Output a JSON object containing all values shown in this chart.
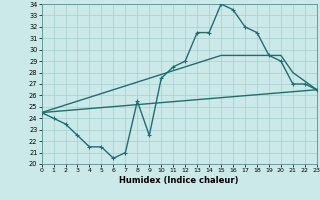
{
  "xlabel": "Humidex (Indice chaleur)",
  "bg_color": "#cce9e9",
  "line_color": "#1a7070",
  "grid_color": "#a8cece",
  "xlim": [
    0,
    23
  ],
  "ylim": [
    20,
    34
  ],
  "xticks": [
    0,
    1,
    2,
    3,
    4,
    5,
    6,
    7,
    8,
    9,
    10,
    11,
    12,
    13,
    14,
    15,
    16,
    17,
    18,
    19,
    20,
    21,
    22,
    23
  ],
  "yticks": [
    20,
    21,
    22,
    23,
    24,
    25,
    26,
    27,
    28,
    29,
    30,
    31,
    32,
    33,
    34
  ],
  "line1_x": [
    0,
    1,
    2,
    3,
    4,
    5,
    6,
    7,
    8,
    9,
    10,
    11,
    12,
    13,
    14,
    15,
    16,
    17,
    18,
    19,
    20,
    21,
    22,
    23
  ],
  "line1_y": [
    24.5,
    24.0,
    23.5,
    22.5,
    21.5,
    21.5,
    20.5,
    21.0,
    25.5,
    22.5,
    27.5,
    28.5,
    29.0,
    31.5,
    31.5,
    34.0,
    33.5,
    32.0,
    31.5,
    29.5,
    29.0,
    27.0,
    27.0,
    26.5
  ],
  "line2_x": [
    0,
    23
  ],
  "line2_y": [
    24.5,
    26.5
  ],
  "line3_x": [
    0,
    15,
    20,
    21,
    23
  ],
  "line3_y": [
    24.5,
    29.5,
    29.5,
    28.0,
    26.5
  ]
}
